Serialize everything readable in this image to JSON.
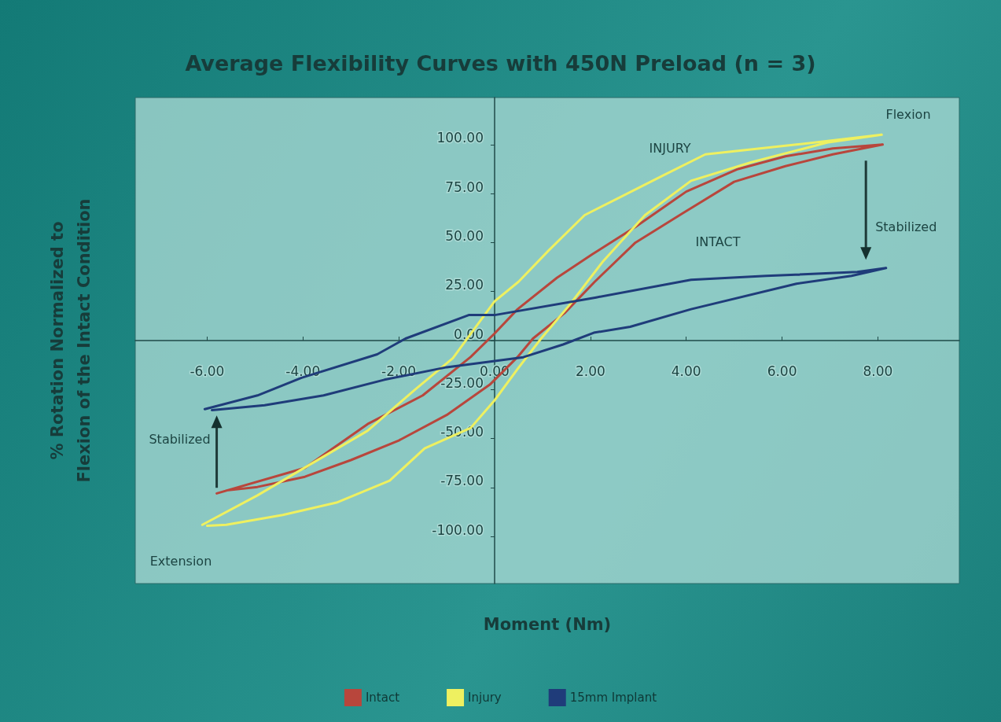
{
  "chart_data": {
    "type": "line",
    "title": "Average Flexibility Curves with 450N Preload (n = 3)",
    "xlabel": "Moment (Nm)",
    "ylabel": "% Rotation Normalized to\nFlexion of the Intact Condition",
    "xlim": [
      -7.5,
      9.7
    ],
    "ylim": [
      -124,
      124
    ],
    "xticks": [
      {
        "value": -6,
        "label": "-6.00"
      },
      {
        "value": -4,
        "label": "-4.00"
      },
      {
        "value": -2,
        "label": "-2.00"
      },
      {
        "value": 0,
        "label": "0.00"
      },
      {
        "value": 2,
        "label": "2.00"
      },
      {
        "value": 4,
        "label": "4.00"
      },
      {
        "value": 6,
        "label": "6.00"
      },
      {
        "value": 8,
        "label": "8.00"
      }
    ],
    "yticks": [
      {
        "value": -100,
        "label": "-100.00"
      },
      {
        "value": -75,
        "label": "-75.00"
      },
      {
        "value": -50,
        "label": "-50.00"
      },
      {
        "value": -25,
        "label": "-25.00"
      },
      {
        "value": 0,
        "label": "0.00"
      },
      {
        "value": 25,
        "label": "25.00"
      },
      {
        "value": 50,
        "label": "50.00"
      },
      {
        "value": 75,
        "label": "75.00"
      },
      {
        "value": 100,
        "label": "100.00"
      }
    ],
    "grid": false,
    "legend": "bottom",
    "marker": "none",
    "line_style": "solid",
    "series": [
      {
        "name": "Intact",
        "color": "#b8463c",
        "x": [
          -5.8,
          -3.96,
          -2.65,
          -1.5,
          -0.5,
          0,
          0.48,
          1.3,
          2.04,
          2.94,
          4,
          5.08,
          6.07,
          7.06,
          8.1,
          7.06,
          6.07,
          5,
          3.93,
          2.94,
          2.09,
          1.46,
          0.8,
          0.48,
          -0.1,
          -1,
          -2,
          -3,
          -3.96,
          -4.95,
          -5.6
        ],
        "values": [
          -78,
          -65,
          -42.6,
          -28,
          -8.4,
          3.6,
          16,
          32,
          44,
          58,
          76,
          87.5,
          94,
          98,
          100,
          95,
          89,
          81,
          65,
          50,
          30,
          14,
          1,
          -8.4,
          -22.5,
          -38,
          -51,
          -61,
          -69.5,
          -74.7,
          -76.5
        ]
      },
      {
        "name": "Injury",
        "color": "#eef060",
        "x": [
          -6.1,
          -4.95,
          -2.65,
          -1.66,
          -0.87,
          0,
          0.5,
          1.13,
          1.88,
          3.5,
          4.4,
          6.3,
          8.08,
          6.94,
          5.36,
          4.1,
          3.14,
          2.25,
          1.56,
          0.97,
          0.48,
          0,
          -0.5,
          -1.46,
          -2.19,
          -3.3,
          -4.42,
          -5.6,
          -6
        ],
        "values": [
          -94,
          -79,
          -46,
          -25,
          -9,
          20,
          30,
          46,
          64,
          84,
          95,
          100,
          105,
          101,
          91,
          81.5,
          64,
          40,
          18,
          1,
          -14.5,
          -30.5,
          -44.6,
          -55,
          -71.5,
          -82.7,
          -89,
          -94,
          -94.5
        ]
      },
      {
        "name": "15mm Implant",
        "color": "#1f3c7a",
        "x": [
          -6.05,
          -4.95,
          -4.03,
          -2.45,
          -1.86,
          -0.54,
          0,
          2.12,
          4.1,
          5.67,
          7.57,
          8.17,
          7.45,
          6.3,
          4.1,
          2.83,
          2.07,
          1.43,
          0.6,
          -1,
          -2.3,
          -3.57,
          -4.8,
          -5.9
        ],
        "values": [
          -35,
          -28,
          -19,
          -7,
          1,
          13,
          13,
          22,
          31,
          33,
          35,
          37,
          33,
          29,
          16,
          7,
          4,
          -2,
          -8.5,
          -13.6,
          -20,
          -28,
          -33,
          -35.5
        ]
      }
    ],
    "annotations": [
      "Flexion",
      "Extension",
      "INJURY",
      "INTACT",
      {
        "text": "Stabilized",
        "x": 7.75,
        "y": 38
      },
      {
        "text": "Stabilized",
        "x": -5.8,
        "y": -35
      }
    ]
  }
}
